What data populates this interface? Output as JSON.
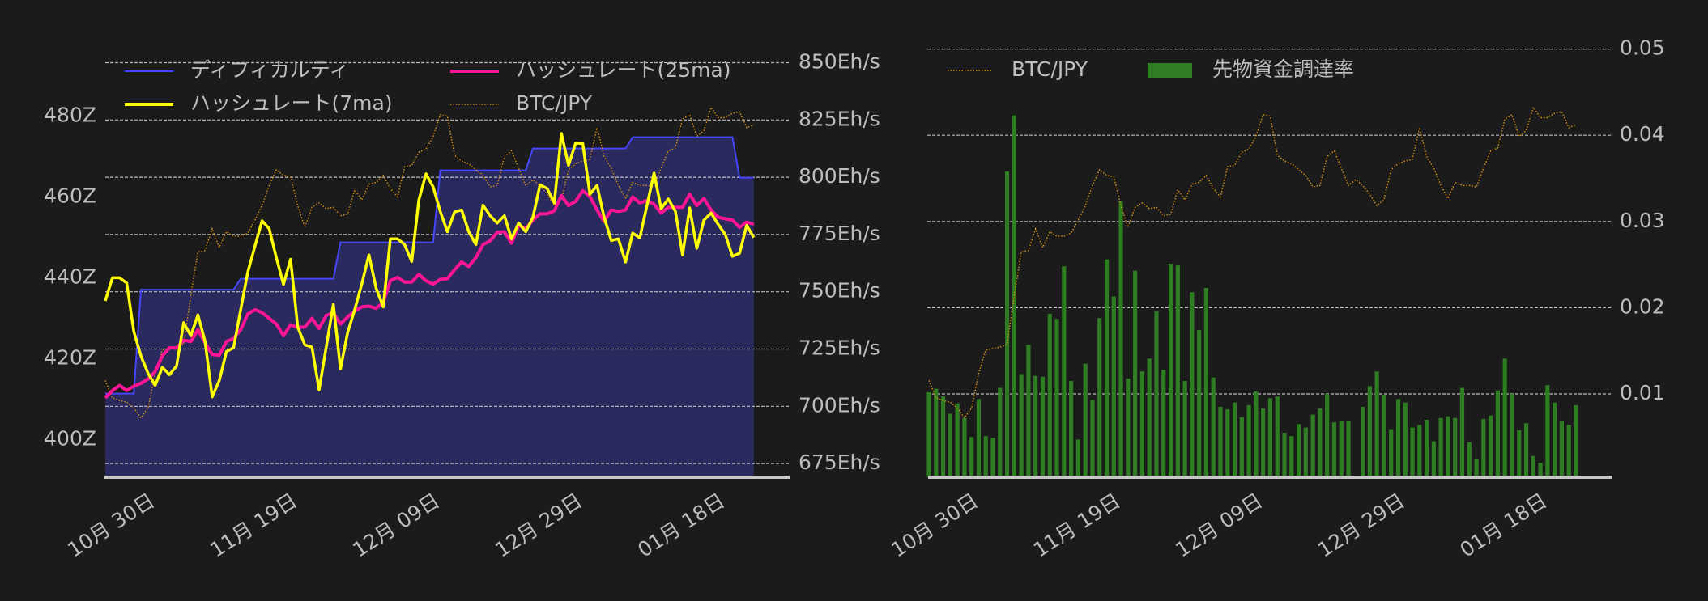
{
  "colors": {
    "background": "#1b1b1b",
    "text": "#bdbdbd",
    "grid": "#d8d8d8",
    "difficulty_line": "#4646ff",
    "difficulty_fill": "#2a2a5e",
    "hashrate_7ma": "#ffff00",
    "hashrate_25ma": "#ff1493",
    "btc_jpy": "#d9930c",
    "funding_rate": "#2e7d23",
    "axis_line": "#c8c8c8"
  },
  "chart_data": [
    {
      "type": "line",
      "x_range": {
        "start": "10-24",
        "end": "01-23",
        "step_days": 1
      },
      "x_ticks": [
        {
          "date": "10-30",
          "label": "10月 30日"
        },
        {
          "date": "11-19",
          "label": "11月 19日"
        },
        {
          "date": "12-09",
          "label": "12月 09日"
        },
        {
          "date": "12-29",
          "label": "12月 29日"
        },
        {
          "date": "01-18",
          "label": "01月 18日"
        }
      ],
      "y_left": {
        "ticks": [
          400,
          420,
          440,
          460,
          480
        ],
        "labels": [
          "400Z",
          "420Z",
          "440Z",
          "460Z",
          "480Z"
        ],
        "ylim": [
          391,
          499
        ]
      },
      "y_right": {
        "ticks": [
          675,
          700,
          725,
          750,
          775,
          800,
          825,
          850
        ],
        "labels": [
          "675Eh/s",
          "700Eh/s",
          "725Eh/s",
          "750Eh/s",
          "775Eh/s",
          "800Eh/s",
          "825Eh/s",
          "850Eh/s"
        ],
        "ylim": [
          669,
          860
        ]
      },
      "grid": "horizontal dashed (right axis)",
      "legend": {
        "placement": "top",
        "entries": [
          "ディフィカルティ",
          "ハッシュレート(25ma)",
          "ハッシュレート(7ma)",
          "BTC/JPY"
        ]
      },
      "series": [
        {
          "name": "ディフィカルティ",
          "axis": "left",
          "style": "step-area",
          "steps": [
            {
              "start": "10-24",
              "value": 411.4
            },
            {
              "start": "10-29",
              "value": 437.1
            },
            {
              "start": "11-12",
              "value": 439.8
            },
            {
              "start": "11-26",
              "value": 448.8
            },
            {
              "start": "12-10",
              "value": 466.6
            },
            {
              "start": "12-23",
              "value": 472.0
            },
            {
              "start": "01-06",
              "value": 474.8
            },
            {
              "start": "01-21",
              "value": 464.8
            }
          ]
        },
        {
          "name": "ハッシュレート(7ma)",
          "axis": "right",
          "values": [
            746.0,
            756.1,
            756.1,
            753.8,
            732.7,
            722.0,
            714.4,
            709.1,
            717.0,
            713.8,
            717.6,
            736.5,
            730.8,
            739.9,
            728.3,
            704.1,
            711.3,
            723.9,
            725.5,
            742.2,
            758.6,
            769.9,
            781.0,
            777.5,
            764.9,
            753.2,
            764.2,
            734.6,
            726.8,
            725.8,
            707.2,
            725.8,
            744.5,
            716.3,
            732.1,
            742.2,
            753.5,
            766.1,
            751.6,
            743.4,
            773.1,
            773.1,
            770.6,
            763.2,
            790.1,
            801.5,
            795.8,
            785.1,
            776.2,
            784.8,
            785.7,
            776.2,
            770.6,
            787.8,
            783.2,
            780.0,
            783.2,
            773.1,
            780.0,
            776.2,
            782.5,
            796.7,
            795.1,
            788.8,
            819.1,
            805.2,
            814.9,
            814.7,
            792.6,
            796.4,
            782.5,
            772.4,
            773.1,
            763.0,
            775.6,
            773.5,
            787.6,
            801.8,
            786.3,
            790.5,
            785.1,
            766.1,
            786.6,
            769.0,
            781.3,
            784.4,
            779.4,
            775.0,
            765.5,
            766.8,
            779.0,
            773.7
          ]
        },
        {
          "name": "ハッシュレート(25ma)",
          "axis": "right",
          "values": [
            703.7,
            706.9,
            709.1,
            706.9,
            708.8,
            710.0,
            711.9,
            715.1,
            722.0,
            725.5,
            725.5,
            728.9,
            728.3,
            733.4,
            727.7,
            722.6,
            722.3,
            728.3,
            729.6,
            733.4,
            740.3,
            742.2,
            740.9,
            738.4,
            735.9,
            730.8,
            735.6,
            734.4,
            734.6,
            738.4,
            734.0,
            739.7,
            740.7,
            735.9,
            739.0,
            741.6,
            743.4,
            743.7,
            742.8,
            745.3,
            754.8,
            756.3,
            754.2,
            754.2,
            757.6,
            754.8,
            753.3,
            755.4,
            755.7,
            759.6,
            763.0,
            761.1,
            764.9,
            770.6,
            772.2,
            776.0,
            776.2,
            771.2,
            779.0,
            777.5,
            781.3,
            784.0,
            784.0,
            785.3,
            792.0,
            787.6,
            789.5,
            794.1,
            791.6,
            785.7,
            780.6,
            785.7,
            785.1,
            785.7,
            791.4,
            788.8,
            789.8,
            788.2,
            784.4,
            786.9,
            786.9,
            786.9,
            792.6,
            787.6,
            790.7,
            785.7,
            782.5,
            781.9,
            781.3,
            778.1,
            780.4,
            779.4
          ]
        },
        {
          "name": "BTC/JPY",
          "axis": "hidden",
          "style": "dotted",
          "values": [
            711.3,
            703.7,
            702.5,
            701.8,
            699.3,
            694.9,
            699.3,
            714.4,
            724.5,
            725.2,
            725.8,
            727.0,
            748.5,
            767.4,
            768.0,
            777.5,
            769.3,
            776.2,
            774.3,
            774.3,
            775.6,
            781.3,
            787.6,
            796.4,
            803.3,
            800.8,
            800.2,
            787.6,
            778.1,
            786.9,
            788.8,
            786.3,
            786.9,
            783.2,
            783.8,
            794.5,
            790.1,
            797.0,
            797.7,
            800.8,
            795.1,
            791.4,
            804.6,
            805.2,
            810.9,
            812.2,
            817.8,
            827.3,
            826.7,
            809.6,
            807.1,
            805.9,
            803.3,
            800.8,
            795.8,
            796.4,
            809.0,
            811.5,
            804.0,
            796.4,
            798.9,
            796.4,
            792.6,
            787.6,
            790.1,
            803.3,
            805.9,
            807.1,
            807.8,
            821.6,
            809.0,
            804.0,
            796.4,
            790.7,
            797.7,
            796.4,
            796.4,
            795.8,
            804.0,
            811.5,
            812.8,
            825.4,
            827.3,
            817.8,
            820.4,
            830.5,
            826.0,
            826.0,
            827.9,
            828.6,
            821.6,
            822.9
          ]
        }
      ]
    },
    {
      "type": "bar",
      "x_range": {
        "start": "10-24",
        "end": "01-23",
        "step_days": 1
      },
      "x_ticks": [
        {
          "date": "10-30",
          "label": "10月 30日"
        },
        {
          "date": "11-19",
          "label": "11月 19日"
        },
        {
          "date": "12-09",
          "label": "12月 09日"
        },
        {
          "date": "12-29",
          "label": "12月 29日"
        },
        {
          "date": "01-18",
          "label": "01月 18日"
        }
      ],
      "y_right": {
        "ticks": [
          0.01,
          0.02,
          0.03,
          0.04,
          0.05
        ],
        "labels": [
          "0.01",
          "0.02",
          "0.03",
          "0.04",
          "0.05"
        ],
        "ylim": [
          0.0003,
          0.0557
        ]
      },
      "grid": "horizontal dashed",
      "legend": {
        "placement": "top-left",
        "entries": [
          "BTC/JPY",
          "先物資金調達率"
        ]
      },
      "series": [
        {
          "name": "BTC/JPY",
          "axis": "hidden",
          "style": "dotted",
          "same_as": "chart_data.0.series.3"
        },
        {
          "name": "先物資金調達率",
          "type": "bar",
          "values": [
            0.0102,
            0.0106,
            0.0097,
            0.0077,
            0.0089,
            0.0072,
            0.005,
            0.0094,
            0.0051,
            0.0049,
            0.0107,
            0.0358,
            0.0423,
            0.0123,
            0.0157,
            0.0121,
            0.012,
            0.0193,
            0.0187,
            0.0248,
            0.0115,
            0.0047,
            0.0135,
            0.0093,
            0.0188,
            0.0256,
            0.0213,
            0.0324,
            0.0118,
            0.0243,
            0.0126,
            0.0141,
            0.0196,
            0.0128,
            0.0251,
            0.0249,
            0.0115,
            0.0218,
            0.0174,
            0.0223,
            0.0119,
            0.0085,
            0.0082,
            0.009,
            0.0073,
            0.0087,
            0.0103,
            0.0083,
            0.0095,
            0.0097,
            0.0055,
            0.0051,
            0.0065,
            0.0061,
            0.0076,
            0.0083,
            0.01,
            0.0067,
            0.0069,
            0.0069,
            null,
            0.0085,
            0.0109,
            0.0126,
            0.0099,
            0.0059,
            0.0094,
            0.009,
            0.0061,
            0.0064,
            0.007,
            0.0045,
            0.0072,
            0.0074,
            0.0072,
            0.0107,
            0.0044,
            0.0024,
            0.0071,
            0.0075,
            0.0104,
            0.0141,
            0.01,
            0.0058,
            0.0066,
            0.0028,
            0.002,
            0.011,
            0.009,
            0.0069,
            0.0064,
            0.0087
          ]
        }
      ]
    }
  ]
}
